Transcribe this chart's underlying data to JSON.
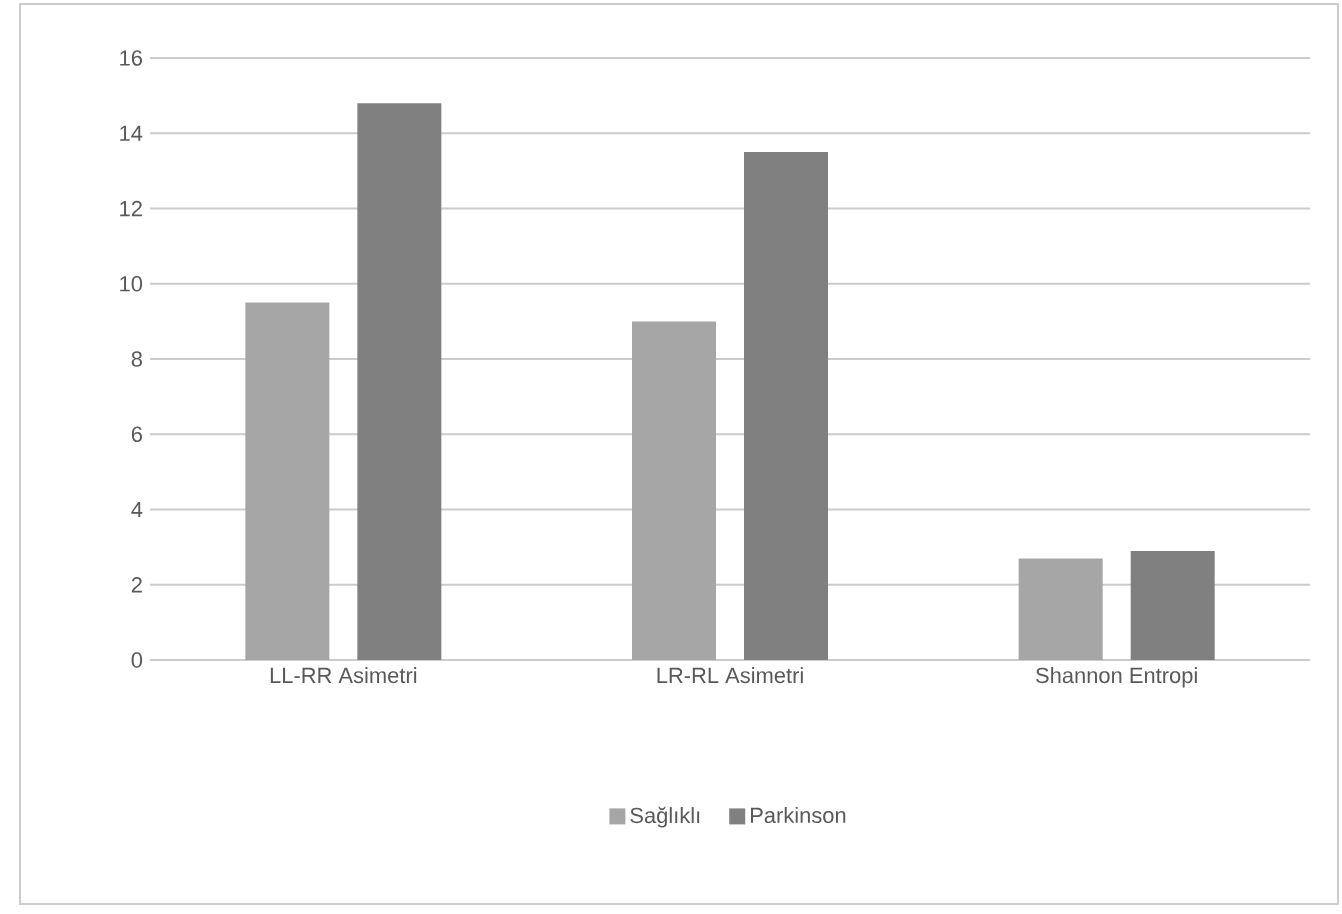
{
  "chart_data": {
    "type": "bar",
    "categories": [
      "LL-RR Asimetri",
      "LR-RL Asimetri",
      "Shannon Entropi"
    ],
    "series": [
      {
        "name": "Sağlıklı",
        "color": "#a6a6a6",
        "values": [
          9.5,
          9.0,
          2.7
        ]
      },
      {
        "name": "Parkinson",
        "color": "#808080",
        "values": [
          14.8,
          13.5,
          2.9
        ]
      }
    ],
    "ylim": [
      0,
      16
    ],
    "yticks": [
      0,
      2,
      4,
      6,
      8,
      10,
      12,
      14,
      16
    ],
    "grid": "y",
    "legend": "bottom"
  }
}
